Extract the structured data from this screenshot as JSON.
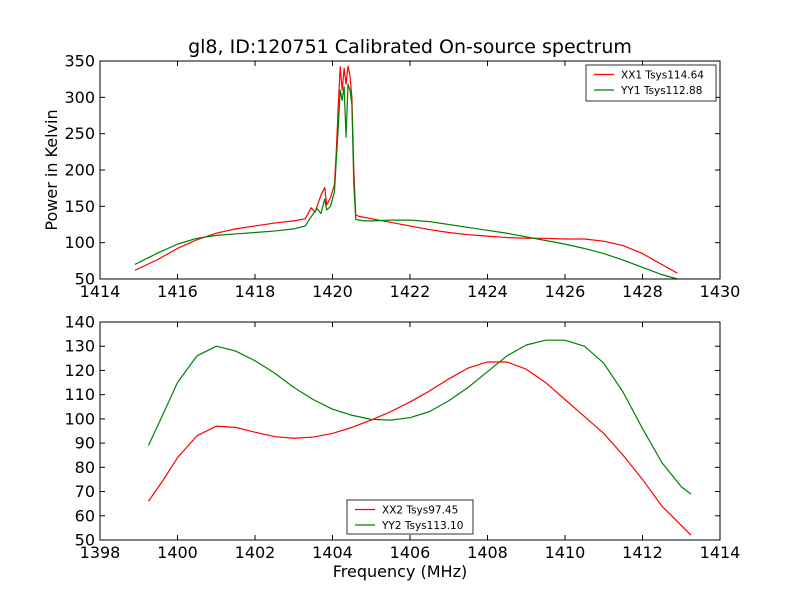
{
  "title": "gl8, ID:120751 Calibrated On-source spectrum",
  "chart_data": [
    {
      "type": "line",
      "title": "gl8, ID:120751 Calibrated On-source spectrum",
      "xlabel": "",
      "ylabel": "Power in Kelvin",
      "xlim": [
        1414,
        1430
      ],
      "ylim": [
        50,
        350
      ],
      "xticks": [
        1414,
        1416,
        1418,
        1420,
        1422,
        1424,
        1426,
        1428,
        1430
      ],
      "yticks": [
        50,
        100,
        150,
        200,
        250,
        300,
        350
      ],
      "grid": false,
      "legend_position": "top-right",
      "series": [
        {
          "name": "XX1 Tsys114.64",
          "color": "#ff0000",
          "x": [
            1414.9,
            1415.5,
            1416.0,
            1416.5,
            1417.0,
            1417.5,
            1418.0,
            1418.5,
            1419.0,
            1419.3,
            1419.45,
            1419.55,
            1419.7,
            1419.8,
            1419.85,
            1419.95,
            1420.05,
            1420.1,
            1420.15,
            1420.2,
            1420.25,
            1420.3,
            1420.35,
            1420.4,
            1420.45,
            1420.5,
            1420.55,
            1420.6,
            1420.7,
            1420.8,
            1421.0,
            1421.5,
            1422.0,
            1422.5,
            1423.0,
            1423.5,
            1424.0,
            1424.5,
            1425.0,
            1425.5,
            1426.0,
            1426.5,
            1427.0,
            1427.5,
            1428.0,
            1428.5,
            1428.9
          ],
          "y": [
            62,
            77,
            92,
            104,
            113,
            119,
            123,
            127,
            130,
            133,
            148,
            142,
            165,
            176,
            152,
            162,
            180,
            228,
            290,
            342,
            310,
            340,
            318,
            343,
            330,
            300,
            200,
            138,
            136,
            135,
            133,
            128,
            123,
            118,
            114,
            111,
            109,
            107,
            106,
            106,
            105,
            105,
            102,
            96,
            85,
            70,
            58
          ]
        },
        {
          "name": "YY1 Tsys112.88",
          "color": "#008000",
          "x": [
            1414.9,
            1415.5,
            1416.0,
            1416.5,
            1417.0,
            1417.5,
            1418.0,
            1418.5,
            1419.0,
            1419.3,
            1419.4,
            1419.6,
            1419.7,
            1419.8,
            1419.85,
            1419.95,
            1420.05,
            1420.1,
            1420.15,
            1420.2,
            1420.25,
            1420.3,
            1420.35,
            1420.4,
            1420.45,
            1420.5,
            1420.55,
            1420.6,
            1420.7,
            1420.8,
            1421.0,
            1421.5,
            1422.0,
            1422.5,
            1423.0,
            1423.5,
            1424.0,
            1424.5,
            1425.0,
            1425.5,
            1426.0,
            1426.5,
            1427.0,
            1427.5,
            1428.0,
            1428.5,
            1428.9
          ],
          "y": [
            70,
            86,
            98,
            106,
            110,
            112,
            114,
            116,
            119,
            123,
            132,
            147,
            140,
            160,
            145,
            150,
            170,
            215,
            260,
            310,
            296,
            315,
            245,
            318,
            310,
            290,
            180,
            132,
            131,
            130,
            130,
            131,
            131,
            129,
            125,
            121,
            117,
            113,
            108,
            103,
            98,
            92,
            85,
            76,
            66,
            56,
            50
          ]
        }
      ]
    },
    {
      "type": "line",
      "title": "",
      "xlabel": "Frequency (MHz)",
      "ylabel": "",
      "xlim": [
        1398,
        1414
      ],
      "ylim": [
        50,
        140
      ],
      "xticks": [
        1398,
        1400,
        1402,
        1404,
        1406,
        1408,
        1410,
        1412,
        1414
      ],
      "yticks": [
        50,
        60,
        70,
        80,
        90,
        100,
        110,
        120,
        130,
        140
      ],
      "grid": false,
      "legend_position": "bottom-center",
      "series": [
        {
          "name": "XX2 Tsys97.45",
          "color": "#ff0000",
          "x": [
            1399.25,
            1399.6,
            1400.0,
            1400.5,
            1401.0,
            1401.5,
            1402.0,
            1402.5,
            1403.0,
            1403.5,
            1404.0,
            1404.5,
            1405.0,
            1405.5,
            1406.0,
            1406.5,
            1407.0,
            1407.5,
            1408.0,
            1408.5,
            1409.0,
            1409.5,
            1410.0,
            1410.5,
            1411.0,
            1411.5,
            1412.0,
            1412.5,
            1413.0,
            1413.25
          ],
          "y": [
            66,
            74,
            84,
            93,
            97,
            96.5,
            94.5,
            92.7,
            92,
            92.5,
            94,
            96.5,
            99.5,
            103,
            107,
            111.5,
            116.5,
            121,
            123.5,
            123.5,
            120.5,
            115,
            108,
            101,
            94,
            85,
            75,
            64,
            56,
            52
          ]
        },
        {
          "name": "YY2 Tsys113.10",
          "color": "#008000",
          "x": [
            1399.25,
            1399.6,
            1400.0,
            1400.5,
            1401.0,
            1401.5,
            1402.0,
            1402.5,
            1403.0,
            1403.5,
            1404.0,
            1404.5,
            1405.0,
            1405.5,
            1406.0,
            1406.5,
            1407.0,
            1407.5,
            1408.0,
            1408.5,
            1409.0,
            1409.5,
            1410.0,
            1410.5,
            1411.0,
            1411.5,
            1412.0,
            1412.5,
            1413.0,
            1413.25
          ],
          "y": [
            89,
            101,
            115,
            126,
            130,
            128,
            124,
            119,
            113,
            108,
            104,
            101.5,
            99.8,
            99.5,
            100.5,
            103,
            107.5,
            113,
            119.5,
            126,
            130.5,
            132.5,
            132.5,
            130,
            123,
            111,
            96,
            82,
            72,
            69
          ]
        }
      ]
    }
  ]
}
